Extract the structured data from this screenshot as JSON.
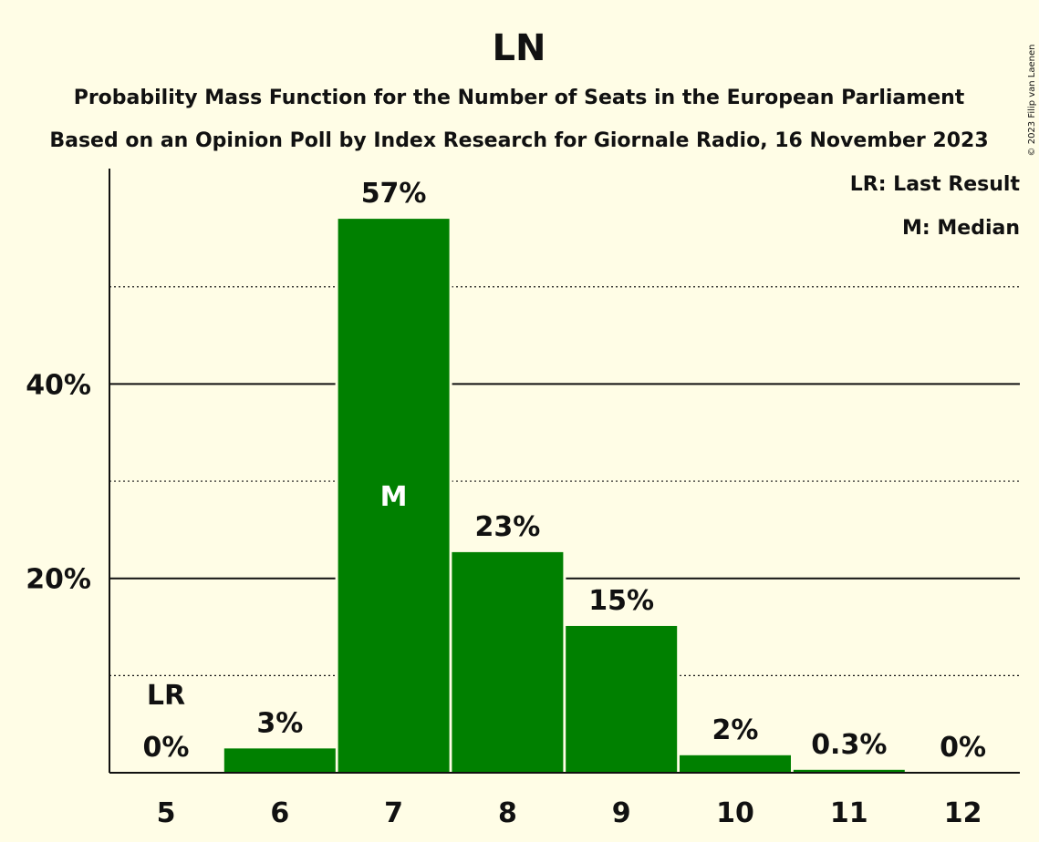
{
  "title": "LN",
  "subtitle1": "Probability Mass Function for the Number of Seats in the European Parliament",
  "subtitle2": "Based on an Opinion Poll by Index Research for Giornale Radio, 16 November 2023",
  "copyright": "© 2023 Filip van Laenen",
  "legend": {
    "last_result": "LR: Last Result",
    "median": "M: Median"
  },
  "colors": {
    "bar": "#008000",
    "background": "#FFFDE6",
    "text": "#111111"
  },
  "chart_data": {
    "type": "bar",
    "categories": [
      "5",
      "6",
      "7",
      "8",
      "9",
      "10",
      "11",
      "12"
    ],
    "values": [
      0,
      2.5,
      57,
      22.7,
      15.1,
      1.8,
      0.3,
      0
    ],
    "labels": [
      "0%",
      "3%",
      "57%",
      "23%",
      "15%",
      "2%",
      "0.3%",
      "0%"
    ],
    "ylim": [
      0,
      62
    ],
    "y_ticks": [
      {
        "value": 20,
        "label": "20%"
      },
      {
        "value": 40,
        "label": "40%"
      }
    ],
    "minor_gridlines": [
      10,
      30,
      50
    ],
    "last_result_category": "5",
    "last_result_marker": "LR",
    "median_category": "7",
    "median_marker": "M",
    "grid": true,
    "legend_position": "top-right"
  }
}
